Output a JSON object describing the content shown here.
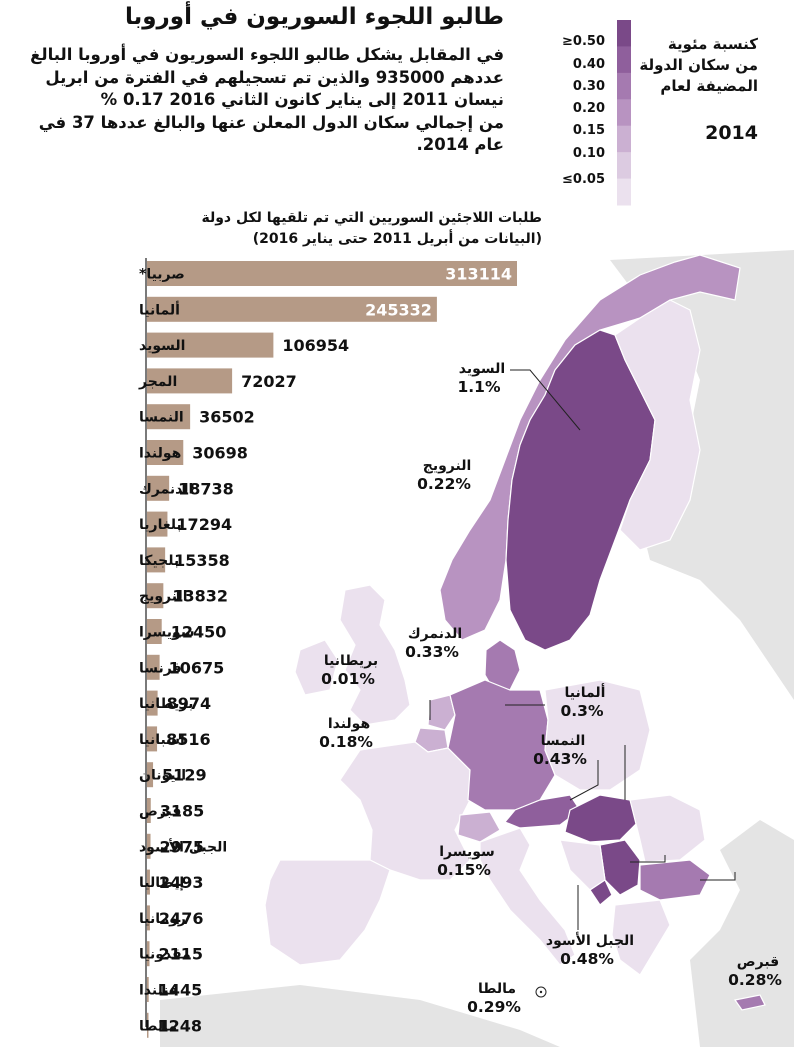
{
  "title": "طالبو اللجوء السوريون في أوروبا",
  "intro": "في المقابل يشكل طالبو اللجوء السوريون في أوروبا البالغ\nعددهم 935000 والذين تم تسجيلهم في الفترة من ابريل\nنيسان 2011 إلى يناير كانون الثاني 2016  0.17 %\nمن إجمالي سكان الدول المعلن عنها والبالغ عددها 37 في\nعام 2014.",
  "legend": {
    "title": "كنسبة مئوية\nمن سكان الدولة\nالمضيفة لعام",
    "year": "2014",
    "items": [
      {
        "label": "≥0.50",
        "color": "#7a4988"
      },
      {
        "label": "0.40",
        "color": "#8f5f9c"
      },
      {
        "label": "0.30",
        "color": "#a57ab0"
      },
      {
        "label": "0.20",
        "color": "#b893c1"
      },
      {
        "label": "0.15",
        "color": "#cbb0d2"
      },
      {
        "label": "0.10",
        "color": "#dccbe1"
      },
      {
        "label": "≤0.05",
        "color": "#ebe1ee"
      }
    ]
  },
  "chart_data": [
    {
      "type": "bar",
      "orientation": "horizontal",
      "title": "طلبات اللاجئين السوريين التي تم تلقيها لكل دولة\n(البيانات من أبريل 2011 حتى يناير 2016)",
      "categories": [
        "صربيا*",
        "ألمانيا",
        "السويد",
        "المجر",
        "النمسا",
        "هولندا",
        "الدنمرك",
        "بلغاريا",
        "بلجيكا",
        "النرويج",
        "سويسرا",
        "فرنسا",
        "بريطانيا",
        "اسبانيا",
        "اليونان",
        "قبرص",
        "الجبل الأسود",
        "إيطاليا",
        "رومانيا",
        "مقدونيا",
        "فنلندا",
        "مالطا"
      ],
      "values": [
        313114,
        245332,
        106954,
        72027,
        36502,
        30698,
        18738,
        17294,
        15358,
        13832,
        12450,
        10675,
        8974,
        8516,
        5129,
        3185,
        2975,
        2493,
        2476,
        2115,
        1445,
        1248
      ],
      "value_labels": [
        "313114",
        "245332",
        "106954",
        "72027",
        "36502",
        "30698",
        "18738",
        "17294",
        "15358",
        "13832",
        "12450",
        "10675",
        "8974",
        "8516",
        "5129",
        "3185",
        "2975",
        "2493",
        "2476",
        "2115",
        "1445",
        "1248"
      ],
      "bar_color": "#b59a86"
    },
    {
      "type": "map",
      "title": "",
      "annotations": [
        {
          "name": "السويد",
          "value": "1.1%"
        },
        {
          "name": "النرويج",
          "value": "0.22%"
        },
        {
          "name": "الدنمرك",
          "value": "0.33%"
        },
        {
          "name": "بريطانيا",
          "value": "0.01%"
        },
        {
          "name": "ألمانيا",
          "value": "0.3%"
        },
        {
          "name": "هولندا",
          "value": "0.18%"
        },
        {
          "name": "النمسا",
          "value": "0.43%"
        },
        {
          "name": "سويسرا",
          "value": "0.15%"
        },
        {
          "name": "الجبل الأسود",
          "value": "0.48%"
        },
        {
          "name": "قبرص",
          "value": "0.28%"
        },
        {
          "name": "مالطا",
          "value": "0.29%"
        }
      ]
    }
  ]
}
